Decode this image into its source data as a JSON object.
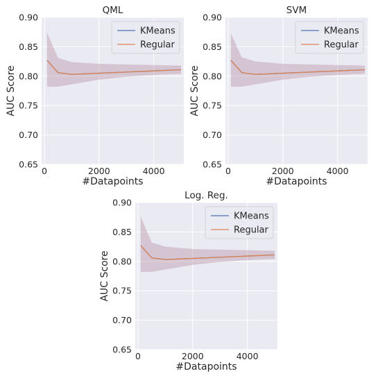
{
  "colors": {
    "background": "#eaeaf2",
    "grid": "#ffffff",
    "kmeans": "#4c72b0",
    "regular": "#dd8452",
    "band": "#b58fa0"
  },
  "chart_data": [
    {
      "type": "line",
      "title": "QML",
      "xlabel": "#Datapoints",
      "ylabel": "AUC Score",
      "xlim": [
        -100,
        5100
      ],
      "ylim": [
        0.65,
        0.9
      ],
      "xticks": [
        0,
        2000,
        4000
      ],
      "xtick_labels": [
        "0",
        "2000",
        "4000"
      ],
      "yticks": [
        0.65,
        0.7,
        0.75,
        0.8,
        0.85,
        0.9
      ],
      "ytick_labels": [
        "0.65",
        "0.70",
        "0.75",
        "0.80",
        "0.85",
        "0.90"
      ],
      "grid": true,
      "legend": "top-right",
      "x": [
        100,
        500,
        1000,
        2000,
        3000,
        4000,
        5000
      ],
      "series": [
        {
          "name": "KMeans",
          "values": [
            0.827,
            0.806,
            0.803,
            0.805,
            0.807,
            0.809,
            0.811
          ],
          "lower": [
            0.782,
            0.782,
            0.786,
            0.794,
            0.799,
            0.802,
            0.804
          ],
          "upper": [
            0.874,
            0.831,
            0.824,
            0.821,
            0.82,
            0.819,
            0.818
          ]
        },
        {
          "name": "Regular",
          "values": [
            0.827,
            0.806,
            0.803,
            0.805,
            0.807,
            0.809,
            0.811
          ],
          "lower": [
            0.782,
            0.782,
            0.786,
            0.794,
            0.799,
            0.802,
            0.804
          ],
          "upper": [
            0.874,
            0.831,
            0.824,
            0.821,
            0.82,
            0.819,
            0.818
          ]
        }
      ]
    },
    {
      "type": "line",
      "title": "SVM",
      "xlabel": "#Datapoints",
      "ylabel": "AUC Score",
      "xlim": [
        -100,
        5100
      ],
      "ylim": [
        0.65,
        0.9
      ],
      "xticks": [
        0,
        2000,
        4000
      ],
      "xtick_labels": [
        "0",
        "2000",
        "4000"
      ],
      "yticks": [
        0.65,
        0.7,
        0.75,
        0.8,
        0.85,
        0.9
      ],
      "ytick_labels": [
        "0.65",
        "0.70",
        "0.75",
        "0.80",
        "0.85",
        "0.90"
      ],
      "grid": true,
      "legend": "top-right",
      "x": [
        100,
        500,
        1000,
        2000,
        3000,
        4000,
        5000
      ],
      "series": [
        {
          "name": "KMeans",
          "values": [
            0.827,
            0.806,
            0.803,
            0.805,
            0.807,
            0.809,
            0.811
          ],
          "lower": [
            0.782,
            0.782,
            0.786,
            0.794,
            0.799,
            0.802,
            0.804
          ],
          "upper": [
            0.872,
            0.832,
            0.825,
            0.821,
            0.82,
            0.819,
            0.818
          ]
        },
        {
          "name": "Regular",
          "values": [
            0.827,
            0.806,
            0.803,
            0.805,
            0.807,
            0.809,
            0.811
          ],
          "lower": [
            0.782,
            0.782,
            0.786,
            0.794,
            0.799,
            0.802,
            0.804
          ],
          "upper": [
            0.872,
            0.832,
            0.825,
            0.821,
            0.82,
            0.819,
            0.818
          ]
        }
      ]
    },
    {
      "type": "line",
      "title": "Log. Reg.",
      "xlabel": "#Datapoints",
      "ylabel": "AUC Score",
      "xlim": [
        -100,
        5100
      ],
      "ylim": [
        0.65,
        0.9
      ],
      "xticks": [
        0,
        2000,
        4000
      ],
      "xtick_labels": [
        "0",
        "2000",
        "4000"
      ],
      "yticks": [
        0.65,
        0.7,
        0.75,
        0.8,
        0.85,
        0.9
      ],
      "ytick_labels": [
        "0.65",
        "0.70",
        "0.75",
        "0.80",
        "0.85",
        "0.90"
      ],
      "grid": true,
      "legend": "top-right",
      "x": [
        100,
        500,
        1000,
        2000,
        3000,
        4000,
        5000
      ],
      "series": [
        {
          "name": "KMeans",
          "values": [
            0.827,
            0.806,
            0.803,
            0.805,
            0.807,
            0.809,
            0.811
          ],
          "lower": [
            0.782,
            0.782,
            0.786,
            0.794,
            0.799,
            0.802,
            0.804
          ],
          "upper": [
            0.876,
            0.832,
            0.825,
            0.821,
            0.82,
            0.819,
            0.818
          ]
        },
        {
          "name": "Regular",
          "values": [
            0.827,
            0.806,
            0.803,
            0.805,
            0.807,
            0.809,
            0.811
          ],
          "lower": [
            0.782,
            0.782,
            0.786,
            0.794,
            0.799,
            0.802,
            0.804
          ],
          "upper": [
            0.876,
            0.832,
            0.825,
            0.821,
            0.82,
            0.819,
            0.818
          ]
        }
      ]
    }
  ]
}
